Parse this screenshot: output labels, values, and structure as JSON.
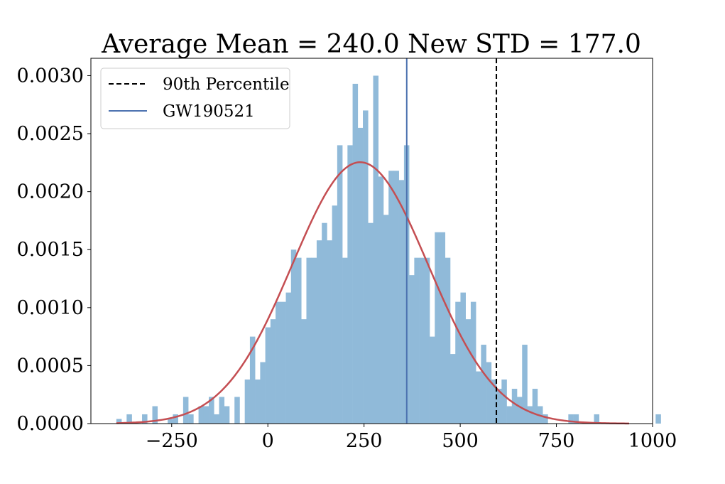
{
  "chart_data": {
    "type": "bar",
    "title": "Average Mean = 240.0 New STD = 177.0",
    "xlabel": "",
    "ylabel": "",
    "xlim": [
      -460,
      1000
    ],
    "ylim": [
      0,
      0.00315
    ],
    "xticks": [
      -250,
      0,
      250,
      500,
      750,
      1000
    ],
    "xtick_labels": [
      "−250",
      "0",
      "250",
      "500",
      "750",
      "1000"
    ],
    "yticks": [
      0,
      0.0005,
      0.001,
      0.0015,
      0.002,
      0.0025,
      0.003
    ],
    "ytick_labels": [
      "0.0000",
      "0.0005",
      "0.0010",
      "0.0015",
      "0.0020",
      "0.0025",
      "0.0030"
    ],
    "grid": false,
    "legend_position": "top-left",
    "histogram": {
      "bin_start": -393.8,
      "bin_width": 13.35,
      "density": [
        4e-05,
        0,
        8e-05,
        0,
        0,
        8e-05,
        0,
        0.00015,
        0,
        0,
        4e-05,
        8e-05,
        0,
        0.00023,
        8e-05,
        0,
        0.00015,
        0.00015,
        0.00023,
        8e-05,
        0.00023,
        0.00015,
        0,
        0.00023,
        0,
        0.00038,
        0.00075,
        0.00038,
        0.00053,
        0.00083,
        0.0009,
        0.00105,
        0.00105,
        0.00113,
        0.0015,
        0.00143,
        0.0009,
        0.00143,
        0.00143,
        0.00158,
        0.00173,
        0.00158,
        0.00188,
        0.0024,
        0.00143,
        0.0024,
        0.00293,
        0.00255,
        0.0027,
        0.00173,
        0.003,
        0.00213,
        0.0018,
        0.00218,
        0.00218,
        0.0021,
        0.0024,
        0.00128,
        0.00143,
        0.00143,
        0.00143,
        0.00075,
        0.00165,
        0.00165,
        0.00143,
        0.0006,
        0.00105,
        0.00113,
        0.0009,
        0.00105,
        0.00045,
        0.00068,
        0.00053,
        0.00038,
        0.0003,
        0.00038,
        0.00015,
        0.0003,
        0.00023,
        0.00068,
        0.00015,
        0.0003,
        0.00015,
        8e-05,
        0,
        0,
        0,
        0,
        8e-05,
        8e-05,
        0,
        0,
        0,
        8e-05,
        0,
        0,
        0,
        0,
        0,
        0,
        0,
        0,
        0,
        0,
        0,
        8e-05
      ],
      "color": "#90bad9"
    },
    "normal_fit": {
      "mean": 240.0,
      "std": 177.0,
      "x_range": [
        -393.8,
        939.0
      ],
      "color": "#c44e52"
    },
    "series": [
      {
        "name": "90th Percentile",
        "type": "vline",
        "x": 594,
        "color": "#000000",
        "style": "dashed"
      },
      {
        "name": "GW190521",
        "type": "vline",
        "x": 361,
        "color": "#4c72b0",
        "style": "solid"
      }
    ]
  }
}
